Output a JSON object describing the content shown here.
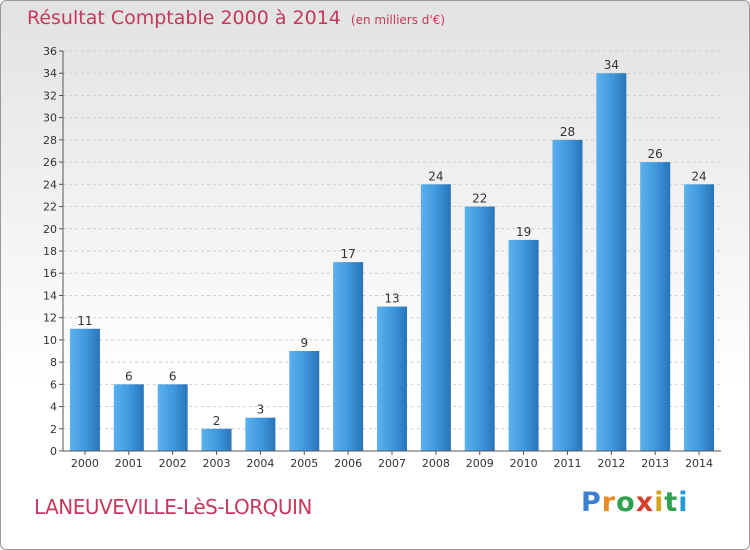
{
  "chart_data": {
    "type": "bar",
    "title": "Résultat Comptable 2000 à 2014",
    "unit": "(en milliers d'€)",
    "categories": [
      "2000",
      "2001",
      "2002",
      "2003",
      "2004",
      "2005",
      "2006",
      "2007",
      "2008",
      "2009",
      "2010",
      "2011",
      "2012",
      "2013",
      "2014"
    ],
    "values": [
      11,
      6,
      6,
      2,
      3,
      9,
      17,
      13,
      24,
      22,
      19,
      28,
      34,
      26,
      24
    ],
    "ylim": [
      0,
      36
    ],
    "ytick_step": 2,
    "grid": true,
    "xlabel": "",
    "ylabel": "",
    "bar_color": "#3e96db",
    "bar_color_light": "#5cb1ee",
    "bar_color_dark": "#2a73b8"
  },
  "footer": {
    "town": "LANEUVEVILLE-LèS-LORQUIN",
    "logo_letters": [
      "P",
      "r",
      "o",
      "x",
      "i",
      "t",
      "i"
    ]
  }
}
